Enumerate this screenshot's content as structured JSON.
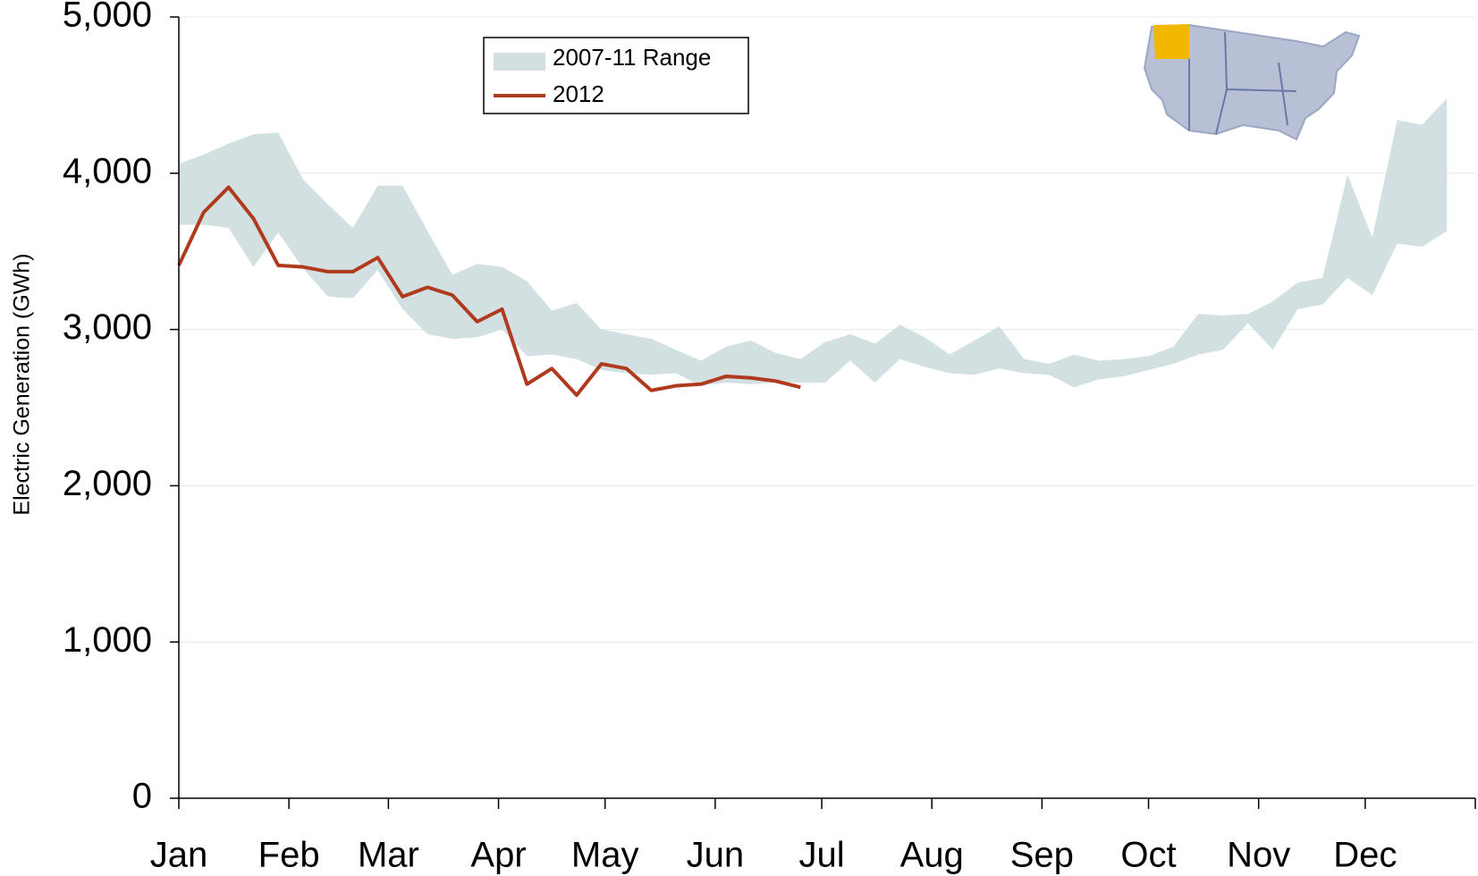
{
  "chart_data": {
    "type": "line",
    "y_label": "Electric Generation (GWh)",
    "xlim": [
      0,
      365
    ],
    "xticks": [
      {
        "value": 0,
        "label": "Jan"
      },
      {
        "value": 31,
        "label": "Feb"
      },
      {
        "value": 59,
        "label": "Mar"
      },
      {
        "value": 90,
        "label": "Apr"
      },
      {
        "value": 120,
        "label": "May"
      },
      {
        "value": 151,
        "label": "Jun"
      },
      {
        "value": 181,
        "label": "Jul"
      },
      {
        "value": 212,
        "label": "Aug"
      },
      {
        "value": 243,
        "label": "Sep"
      },
      {
        "value": 273,
        "label": "Oct"
      },
      {
        "value": 304,
        "label": "Nov"
      },
      {
        "value": 334,
        "label": "Dec"
      }
    ],
    "ylim": [
      0,
      5000
    ],
    "yticks": [
      0,
      {
        "value": 1000,
        "label": "1,000"
      },
      {
        "value": 2000,
        "label": "2,000"
      },
      {
        "value": 3000,
        "label": "3,000"
      },
      {
        "value": 4000,
        "label": "4,000"
      },
      {
        "value": 5000,
        "label": "5,000"
      }
    ],
    "grid": true,
    "legend": "top",
    "x": [
      0,
      7,
      14,
      21,
      28,
      35,
      42,
      49,
      56,
      63,
      70,
      77,
      84,
      91,
      98,
      105,
      112,
      119,
      126,
      133,
      140,
      147,
      154,
      161,
      168,
      175,
      182,
      189,
      196,
      203,
      210,
      217,
      224,
      231,
      238,
      245,
      252,
      259,
      266,
      273,
      280,
      287,
      294,
      301,
      308,
      315,
      322,
      329,
      336,
      343,
      350,
      357
    ],
    "series": [
      {
        "name": "2007-11 Range",
        "color": "#d3e0e2",
        "upper": [
          4060,
          4120,
          4190,
          4250,
          4260,
          3960,
          3800,
          3650,
          3920,
          3920,
          3630,
          3350,
          3420,
          3400,
          3310,
          3120,
          3170,
          3000,
          2970,
          2940,
          2870,
          2800,
          2890,
          2930,
          2850,
          2810,
          2920,
          2970,
          2910,
          3030,
          2950,
          2840,
          2930,
          3020,
          2810,
          2780,
          2840,
          2800,
          2810,
          2830,
          2890,
          3100,
          3090,
          3100,
          3180,
          3300,
          3330,
          3990,
          3590,
          4340,
          4310,
          4480
        ],
        "lower": [
          3670,
          3670,
          3650,
          3400,
          3620,
          3390,
          3210,
          3200,
          3380,
          3130,
          2970,
          2940,
          2950,
          3000,
          2830,
          2840,
          2810,
          2740,
          2720,
          2710,
          2720,
          2640,
          2660,
          2650,
          2660,
          2660,
          2660,
          2800,
          2660,
          2810,
          2760,
          2720,
          2710,
          2750,
          2720,
          2710,
          2630,
          2680,
          2700,
          2740,
          2780,
          2840,
          2870,
          3040,
          2870,
          3130,
          3160,
          3330,
          3220,
          3550,
          3530,
          3630
        ]
      },
      {
        "name": "2012",
        "color": "#b03a1e",
        "values": [
          3410,
          3750,
          3910,
          3710,
          3410,
          3400,
          3370,
          3370,
          3460,
          3210,
          3270,
          3220,
          3050,
          3130,
          2650,
          2750,
          2580,
          2780,
          2750,
          2610,
          2640,
          2650,
          2700,
          2690,
          2670,
          2630,
          null,
          null,
          null,
          null,
          null,
          null,
          null,
          null,
          null,
          null,
          null,
          null,
          null,
          null,
          null,
          null,
          null,
          null,
          null,
          null,
          null,
          null,
          null,
          null,
          null,
          null
        ]
      }
    ]
  }
}
